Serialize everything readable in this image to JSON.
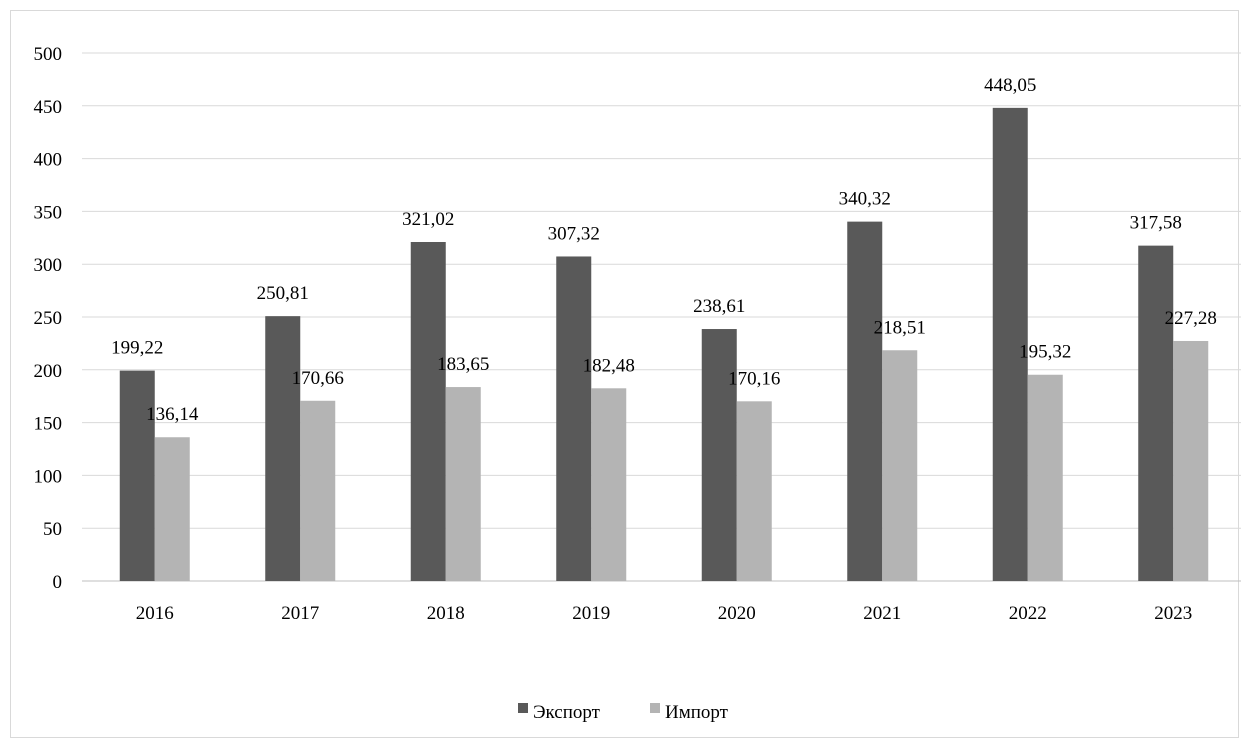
{
  "chart_data": {
    "type": "bar",
    "title": "",
    "xlabel": "",
    "ylabel": "",
    "categories": [
      "2016",
      "2017",
      "2018",
      "2019",
      "2020",
      "2021",
      "2022",
      "2023"
    ],
    "series": [
      {
        "name": "Экспорт",
        "color": "#595959",
        "values": [
          199.22,
          250.81,
          321.02,
          307.32,
          238.61,
          340.32,
          448.05,
          317.58
        ],
        "labels": [
          "199,22",
          "250,81",
          "321,02",
          "307,32",
          "238,61",
          "340,32",
          "448,05",
          "317,58"
        ]
      },
      {
        "name": "Импорт",
        "color": "#b4b4b4",
        "values": [
          136.14,
          170.66,
          183.65,
          182.48,
          170.16,
          218.51,
          195.32,
          227.28
        ],
        "labels": [
          "136,14",
          "170,66",
          "183,65",
          "182,48",
          "170,16",
          "218,51",
          "195,32",
          "227,28"
        ]
      }
    ],
    "ylim": [
      0,
      500
    ],
    "yticks": [
      0,
      50,
      100,
      150,
      200,
      250,
      300,
      350,
      400,
      450,
      500
    ],
    "grid": true,
    "legend_position": "bottom"
  }
}
